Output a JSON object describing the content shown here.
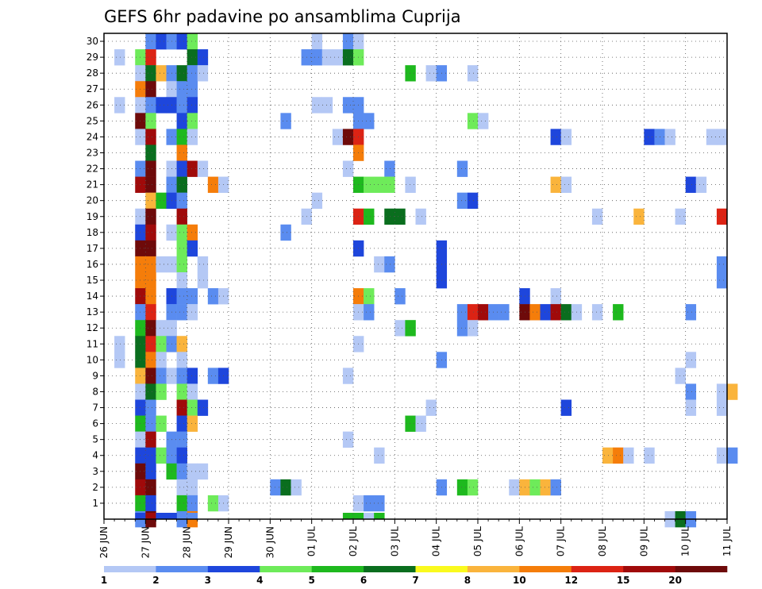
{
  "chart_data": {
    "type": "heatmap",
    "title": "GEFS 6hr padavine po ansamblima Cuprija",
    "xlabel": "",
    "ylabel": "",
    "x_ticks": [
      "26 JUN",
      "27 JUN",
      "28 JUN",
      "29 JUN",
      "30 JUN",
      "01 JUL",
      "02 JUL",
      "03 JUL",
      "04 JUL",
      "05 JUL",
      "06 JUL",
      "07 JUL",
      "08 JUL",
      "09 JUL",
      "10 JUL",
      "11 JUL"
    ],
    "x_range": [
      "26 JUN",
      "11 JUL"
    ],
    "x_step_hours": 6,
    "y_ticks": [
      "1",
      "2",
      "3",
      "4",
      "5",
      "6",
      "7",
      "8",
      "9",
      "10",
      "11",
      "12",
      "13",
      "14",
      "15",
      "16",
      "17",
      "18",
      "19",
      "20",
      "21",
      "22",
      "23",
      "24",
      "25",
      "26",
      "27",
      "28",
      "29",
      "30"
    ],
    "y_range": [
      0,
      30
    ],
    "grid": true,
    "legend": {
      "placement": "bottom",
      "labels": [
        "1",
        "2",
        "3",
        "4",
        "5",
        "6",
        "7",
        "8",
        "10",
        "12",
        "15",
        "20"
      ],
      "colors": [
        "#b4c8f5",
        "#5a8cf0",
        "#1e46dc",
        "#6eeb5a",
        "#1eb91e",
        "#0a6e1e",
        "#fafa1e",
        "#fab43c",
        "#f57d0a",
        "#dc2314",
        "#a00a0a",
        "#6e0a0a"
      ]
    },
    "cells": [
      [
        "27 JUN 00",
        "30",
        2
      ],
      [
        "27 JUN 06",
        "30",
        3
      ],
      [
        "27 JUN 12",
        "30",
        2
      ],
      [
        "27 JUN 18",
        "30",
        3
      ],
      [
        "28 JUN 00",
        "30",
        4
      ],
      [
        "01 JUL 00",
        "30",
        1
      ],
      [
        "01 JUL 18",
        "30",
        2
      ],
      [
        "02 JUL 00",
        "30",
        1
      ],
      [
        "26 JUN 06",
        "29",
        1
      ],
      [
        "26 JUN 18",
        "29",
        4
      ],
      [
        "27 JUN 00",
        "29",
        13
      ],
      [
        "28 JUN 00",
        "29",
        6
      ],
      [
        "28 JUN 06",
        "29",
        3
      ],
      [
        "30 JUN 18",
        "29",
        2
      ],
      [
        "01 JUL 00",
        "29",
        2
      ],
      [
        "01 JUL 06",
        "29",
        1
      ],
      [
        "01 JUL 12",
        "29",
        1
      ],
      [
        "01 JUL 18",
        "29",
        6
      ],
      [
        "02 JUL 00",
        "29",
        4
      ],
      [
        "26 JUN 18",
        "28",
        1
      ],
      [
        "27 JUN 00",
        "28",
        6
      ],
      [
        "27 JUN 06",
        "28",
        8
      ],
      [
        "27 JUN 12",
        "28",
        2
      ],
      [
        "27 JUN 18",
        "28",
        6
      ],
      [
        "28 JUN 00",
        "28",
        2
      ],
      [
        "28 JUN 06",
        "28",
        1
      ],
      [
        "03 JUL 06",
        "28",
        5
      ],
      [
        "03 JUL 18",
        "28",
        1
      ],
      [
        "04 JUL 00",
        "28",
        2
      ],
      [
        "04 JUL 18",
        "28",
        1
      ],
      [
        "26 JUN 18",
        "27",
        11
      ],
      [
        "27 JUN 00",
        "27",
        20
      ],
      [
        "27 JUN 12",
        "27",
        1
      ],
      [
        "27 JUN 18",
        "27",
        2
      ],
      [
        "28 JUN 00",
        "27",
        2
      ],
      [
        "26 JUN 06",
        "26",
        1
      ],
      [
        "26 JUN 18",
        "26",
        1
      ],
      [
        "27 JUN 00",
        "26",
        2
      ],
      [
        "27 JUN 06",
        "26",
        3
      ],
      [
        "27 JUN 12",
        "26",
        3
      ],
      [
        "27 JUN 18",
        "26",
        2
      ],
      [
        "28 JUN 00",
        "26",
        3
      ],
      [
        "01 JUL 00",
        "26",
        1
      ],
      [
        "01 JUL 06",
        "26",
        1
      ],
      [
        "01 JUL 18",
        "26",
        2
      ],
      [
        "02 JUL 00",
        "26",
        2
      ],
      [
        "26 JUN 18",
        "25",
        20
      ],
      [
        "27 JUN 00",
        "25",
        4
      ],
      [
        "27 JUN 18",
        "25",
        3
      ],
      [
        "28 JUN 00",
        "25",
        4
      ],
      [
        "30 JUN 06",
        "25",
        2
      ],
      [
        "02 JUL 00",
        "25",
        2
      ],
      [
        "02 JUL 06",
        "25",
        2
      ],
      [
        "04 JUL 18",
        "25",
        4
      ],
      [
        "05 JUL 00",
        "25",
        1
      ],
      [
        "26 JUN 18",
        "24",
        1
      ],
      [
        "27 JUN 00",
        "24",
        15
      ],
      [
        "27 JUN 12",
        "24",
        2
      ],
      [
        "27 JUN 18",
        "24",
        5
      ],
      [
        "28 JUN 00",
        "24",
        1
      ],
      [
        "01 JUL 12",
        "24",
        1
      ],
      [
        "01 JUL 18",
        "24",
        20
      ],
      [
        "02 JUL 00",
        "24",
        12
      ],
      [
        "06 JUL 18",
        "24",
        3
      ],
      [
        "07 JUL 00",
        "24",
        1
      ],
      [
        "09 JUL 00",
        "24",
        3
      ],
      [
        "09 JUL 06",
        "24",
        2
      ],
      [
        "09 JUL 12",
        "24",
        1
      ],
      [
        "10 JUL 12",
        "24",
        1
      ],
      [
        "10 JUL 18",
        "24",
        1
      ],
      [
        "27 JUN 00",
        "23",
        6
      ],
      [
        "27 JUN 18",
        "23",
        10
      ],
      [
        "02 JUL 00",
        "23",
        10
      ],
      [
        "26 JUN 18",
        "22",
        2
      ],
      [
        "27 JUN 00",
        "22",
        20
      ],
      [
        "27 JUN 12",
        "22",
        1
      ],
      [
        "27 JUN 18",
        "22",
        3
      ],
      [
        "28 JUN 00",
        "22",
        15
      ],
      [
        "28 JUN 06",
        "22",
        1
      ],
      [
        "01 JUL 18",
        "22",
        1
      ],
      [
        "02 JUL 18",
        "22",
        2
      ],
      [
        "04 JUL 12",
        "22",
        2
      ],
      [
        "26 JUN 18",
        "21",
        15
      ],
      [
        "27 JUN 00",
        "21",
        20
      ],
      [
        "27 JUN 12",
        "21",
        2
      ],
      [
        "27 JUN 18",
        "21",
        6
      ],
      [
        "28 JUN 12",
        "21",
        10
      ],
      [
        "28 JUN 18",
        "21",
        1
      ],
      [
        "02 JUL 00",
        "21",
        5
      ],
      [
        "02 JUL 06",
        "21",
        4
      ],
      [
        "02 JUL 12",
        "21",
        4
      ],
      [
        "02 JUL 18",
        "21",
        4
      ],
      [
        "03 JUL 06",
        "21",
        1
      ],
      [
        "06 JUL 18",
        "21",
        8
      ],
      [
        "07 JUL 00",
        "21",
        1
      ],
      [
        "10 JUL 00",
        "21",
        3
      ],
      [
        "10 JUL 06",
        "21",
        1
      ],
      [
        "27 JUN 00",
        "20",
        8
      ],
      [
        "27 JUN 06",
        "20",
        5
      ],
      [
        "27 JUN 12",
        "20",
        3
      ],
      [
        "27 JUN 18",
        "20",
        2
      ],
      [
        "01 JUL 00",
        "20",
        1
      ],
      [
        "04 JUL 12",
        "20",
        2
      ],
      [
        "04 JUL 18",
        "20",
        3
      ],
      [
        "26 JUN 18",
        "19",
        1
      ],
      [
        "27 JUN 00",
        "19",
        20
      ],
      [
        "27 JUN 18",
        "19",
        15
      ],
      [
        "30 JUN 18",
        "19",
        1
      ],
      [
        "02 JUL 00",
        "19",
        12
      ],
      [
        "02 JUL 06",
        "19",
        5
      ],
      [
        "02 JUL 18",
        "19",
        6
      ],
      [
        "03 JUL 00",
        "19",
        6
      ],
      [
        "03 JUL 12",
        "19",
        1
      ],
      [
        "07 JUL 18",
        "19",
        1
      ],
      [
        "08 JUL 18",
        "19",
        8
      ],
      [
        "09 JUL 18",
        "19",
        1
      ],
      [
        "10 JUL 18",
        "19",
        12
      ],
      [
        "26 JUN 18",
        "18",
        3
      ],
      [
        "27 JUN 00",
        "18",
        15
      ],
      [
        "27 JUN 12",
        "18",
        1
      ],
      [
        "27 JUN 18",
        "18",
        4
      ],
      [
        "28 JUN 00",
        "18",
        10
      ],
      [
        "30 JUN 06",
        "18",
        2
      ],
      [
        "26 JUN 18",
        "17",
        20
      ],
      [
        "27 JUN 00",
        "17",
        20
      ],
      [
        "27 JUN 18",
        "17",
        4
      ],
      [
        "28 JUN 00",
        "17",
        3
      ],
      [
        "02 JUL 00",
        "17",
        3
      ],
      [
        "04 JUL 00",
        "17",
        3
      ],
      [
        "26 JUN 18",
        "16",
        10
      ],
      [
        "27 JUN 00",
        "16",
        10
      ],
      [
        "27 JUN 06",
        "16",
        1
      ],
      [
        "27 JUN 12",
        "16",
        1
      ],
      [
        "27 JUN 18",
        "16",
        4
      ],
      [
        "28 JUN 06",
        "16",
        1
      ],
      [
        "02 JUL 12",
        "16",
        1
      ],
      [
        "02 JUL 18",
        "16",
        2
      ],
      [
        "04 JUL 00",
        "16",
        3
      ],
      [
        "10 JUL 18",
        "16",
        2
      ],
      [
        "26 JUN 18",
        "15",
        10
      ],
      [
        "27 JUN 00",
        "15",
        10
      ],
      [
        "27 JUN 18",
        "15",
        1
      ],
      [
        "28 JUN 06",
        "15",
        1
      ],
      [
        "04 JUL 00",
        "15",
        3
      ],
      [
        "10 JUL 18",
        "15",
        2
      ],
      [
        "26 JUN 18",
        "14",
        15
      ],
      [
        "27 JUN 00",
        "14",
        10
      ],
      [
        "27 JUN 12",
        "14",
        3
      ],
      [
        "27 JUN 18",
        "14",
        2
      ],
      [
        "28 JUN 00",
        "14",
        2
      ],
      [
        "28 JUN 12",
        "14",
        2
      ],
      [
        "28 JUN 18",
        "14",
        1
      ],
      [
        "02 JUL 00",
        "14",
        10
      ],
      [
        "02 JUL 06",
        "14",
        4
      ],
      [
        "03 JUL 00",
        "14",
        2
      ],
      [
        "06 JUL 00",
        "14",
        3
      ],
      [
        "06 JUL 18",
        "14",
        1
      ],
      [
        "26 JUN 18",
        "13",
        2
      ],
      [
        "27 JUN 00",
        "13",
        12
      ],
      [
        "27 JUN 12",
        "13",
        2
      ],
      [
        "27 JUN 18",
        "13",
        2
      ],
      [
        "28 JUN 00",
        "13",
        1
      ],
      [
        "02 JUL 00",
        "13",
        1
      ],
      [
        "02 JUL 06",
        "13",
        2
      ],
      [
        "04 JUL 12",
        "13",
        2
      ],
      [
        "04 JUL 18",
        "13",
        12
      ],
      [
        "05 JUL 00",
        "13",
        15
      ],
      [
        "05 JUL 06",
        "13",
        2
      ],
      [
        "05 JUL 12",
        "13",
        2
      ],
      [
        "06 JUL 00",
        "13",
        20
      ],
      [
        "06 JUL 06",
        "13",
        10
      ],
      [
        "06 JUL 12",
        "13",
        3
      ],
      [
        "06 JUL 18",
        "13",
        15
      ],
      [
        "07 JUL 00",
        "13",
        6
      ],
      [
        "07 JUL 06",
        "13",
        1
      ],
      [
        "07 JUL 18",
        "13",
        1
      ],
      [
        "08 JUL 06",
        "13",
        5
      ],
      [
        "10 JUL 00",
        "13",
        2
      ],
      [
        "26 JUN 18",
        "12",
        5
      ],
      [
        "27 JUN 00",
        "12",
        20
      ],
      [
        "27 JUN 06",
        "12",
        1
      ],
      [
        "27 JUN 12",
        "12",
        1
      ],
      [
        "03 JUL 00",
        "12",
        1
      ],
      [
        "03 JUL 06",
        "12",
        5
      ],
      [
        "04 JUL 12",
        "12",
        2
      ],
      [
        "04 JUL 18",
        "12",
        1
      ],
      [
        "26 JUN 06",
        "11",
        1
      ],
      [
        "26 JUN 18",
        "11",
        6
      ],
      [
        "27 JUN 00",
        "11",
        12
      ],
      [
        "27 JUN 06",
        "11",
        4
      ],
      [
        "27 JUN 12",
        "11",
        2
      ],
      [
        "27 JUN 18",
        "11",
        8
      ],
      [
        "02 JUL 00",
        "11",
        1
      ],
      [
        "26 JUN 06",
        "10",
        1
      ],
      [
        "26 JUN 18",
        "10",
        6
      ],
      [
        "27 JUN 00",
        "10",
        10
      ],
      [
        "27 JUN 06",
        "10",
        1
      ],
      [
        "27 JUN 18",
        "10",
        1
      ],
      [
        "04 JUL 00",
        "10",
        2
      ],
      [
        "10 JUL 00",
        "10",
        1
      ],
      [
        "26 JUN 18",
        "9",
        8
      ],
      [
        "27 JUN 00",
        "9",
        20
      ],
      [
        "27 JUN 06",
        "9",
        2
      ],
      [
        "27 JUN 12",
        "9",
        1
      ],
      [
        "27 JUN 18",
        "9",
        2
      ],
      [
        "28 JUN 00",
        "9",
        3
      ],
      [
        "28 JUN 12",
        "9",
        2
      ],
      [
        "28 JUN 18",
        "9",
        3
      ],
      [
        "01 JUL 18",
        "9",
        1
      ],
      [
        "09 JUL 18",
        "9",
        1
      ],
      [
        "26 JUN 18",
        "8",
        1
      ],
      [
        "27 JUN 00",
        "8",
        6
      ],
      [
        "27 JUN 06",
        "8",
        4
      ],
      [
        "27 JUN 18",
        "8",
        4
      ],
      [
        "28 JUN 00",
        "8",
        1
      ],
      [
        "10 JUL 00",
        "8",
        2
      ],
      [
        "10 JUL 18",
        "8",
        1
      ],
      [
        "11 JUL 00",
        "8",
        8
      ],
      [
        "26 JUN 18",
        "7",
        3
      ],
      [
        "27 JUN 00",
        "7",
        2
      ],
      [
        "27 JUN 18",
        "7",
        15
      ],
      [
        "28 JUN 00",
        "7",
        4
      ],
      [
        "28 JUN 06",
        "7",
        3
      ],
      [
        "03 JUL 18",
        "7",
        1
      ],
      [
        "07 JUL 00",
        "7",
        3
      ],
      [
        "10 JUL 00",
        "7",
        1
      ],
      [
        "10 JUL 18",
        "7",
        1
      ],
      [
        "26 JUN 18",
        "6",
        5
      ],
      [
        "27 JUN 00",
        "6",
        2
      ],
      [
        "27 JUN 06",
        "6",
        4
      ],
      [
        "27 JUN 18",
        "6",
        3
      ],
      [
        "28 JUN 00",
        "6",
        8
      ],
      [
        "03 JUL 06",
        "6",
        5
      ],
      [
        "03 JUL 12",
        "6",
        1
      ],
      [
        "26 JUN 18",
        "5",
        1
      ],
      [
        "27 JUN 00",
        "5",
        15
      ],
      [
        "27 JUN 12",
        "5",
        2
      ],
      [
        "27 JUN 18",
        "5",
        2
      ],
      [
        "01 JUL 18",
        "5",
        1
      ],
      [
        "26 JUN 18",
        "4",
        3
      ],
      [
        "27 JUN 00",
        "4",
        3
      ],
      [
        "27 JUN 06",
        "4",
        4
      ],
      [
        "27 JUN 12",
        "4",
        2
      ],
      [
        "27 JUN 18",
        "4",
        3
      ],
      [
        "02 JUL 12",
        "4",
        1
      ],
      [
        "08 JUL 00",
        "4",
        8
      ],
      [
        "08 JUL 06",
        "4",
        10
      ],
      [
        "08 JUL 12",
        "4",
        1
      ],
      [
        "09 JUL 00",
        "4",
        1
      ],
      [
        "10 JUL 18",
        "4",
        1
      ],
      [
        "11 JUL 00",
        "4",
        2
      ],
      [
        "26 JUN 18",
        "3",
        20
      ],
      [
        "27 JUN 00",
        "3",
        3
      ],
      [
        "27 JUN 12",
        "3",
        5
      ],
      [
        "27 JUN 18",
        "3",
        2
      ],
      [
        "28 JUN 00",
        "3",
        1
      ],
      [
        "28 JUN 06",
        "3",
        1
      ],
      [
        "26 JUN 18",
        "2",
        15
      ],
      [
        "27 JUN 00",
        "2",
        20
      ],
      [
        "27 JUN 18",
        "2",
        1
      ],
      [
        "28 JUN 00",
        "2",
        1
      ],
      [
        "30 JUN 00",
        "2",
        2
      ],
      [
        "30 JUN 06",
        "2",
        6
      ],
      [
        "30 JUN 12",
        "2",
        1
      ],
      [
        "04 JUL 00",
        "2",
        2
      ],
      [
        "04 JUL 12",
        "2",
        5
      ],
      [
        "04 JUL 18",
        "2",
        4
      ],
      [
        "05 JUL 18",
        "2",
        1
      ],
      [
        "06 JUL 00",
        "2",
        8
      ],
      [
        "06 JUL 06",
        "2",
        4
      ],
      [
        "06 JUL 12",
        "2",
        8
      ],
      [
        "06 JUL 18",
        "2",
        2
      ],
      [
        "26 JUN 18",
        "1",
        5
      ],
      [
        "27 JUN 00",
        "1",
        3
      ],
      [
        "27 JUN 18",
        "1",
        5
      ],
      [
        "28 JUN 00",
        "1",
        2
      ],
      [
        "28 JUN 12",
        "1",
        4
      ],
      [
        "28 JUN 18",
        "1",
        1
      ],
      [
        "02 JUL 00",
        "1",
        1
      ],
      [
        "02 JUL 06",
        "1",
        2
      ],
      [
        "02 JUL 12",
        "1",
        2
      ],
      [
        "26 JUN 18",
        "0",
        2
      ],
      [
        "27 JUN 00",
        "0",
        20
      ],
      [
        "27 JUN 18",
        "0",
        2
      ],
      [
        "28 JUN 00",
        "0",
        10
      ],
      [
        "09 JUL 12",
        "0",
        1
      ],
      [
        "09 JUL 18",
        "0",
        6
      ],
      [
        "10 JUL 00",
        "0",
        2
      ],
      [
        "26 JUN 18",
        "-",
        3
      ],
      [
        "27 JUN 00",
        "-",
        15
      ],
      [
        "27 JUN 06",
        "-",
        3
      ],
      [
        "27 JUN 12",
        "-",
        3
      ],
      [
        "28 JUN 00",
        "-",
        2
      ],
      [
        "01 JUL 18",
        "-",
        5
      ],
      [
        "02 JUL 00",
        "-",
        5
      ],
      [
        "02 JUL 06",
        "-",
        1
      ],
      [
        "02 JUL 12",
        "-",
        5
      ]
    ]
  }
}
